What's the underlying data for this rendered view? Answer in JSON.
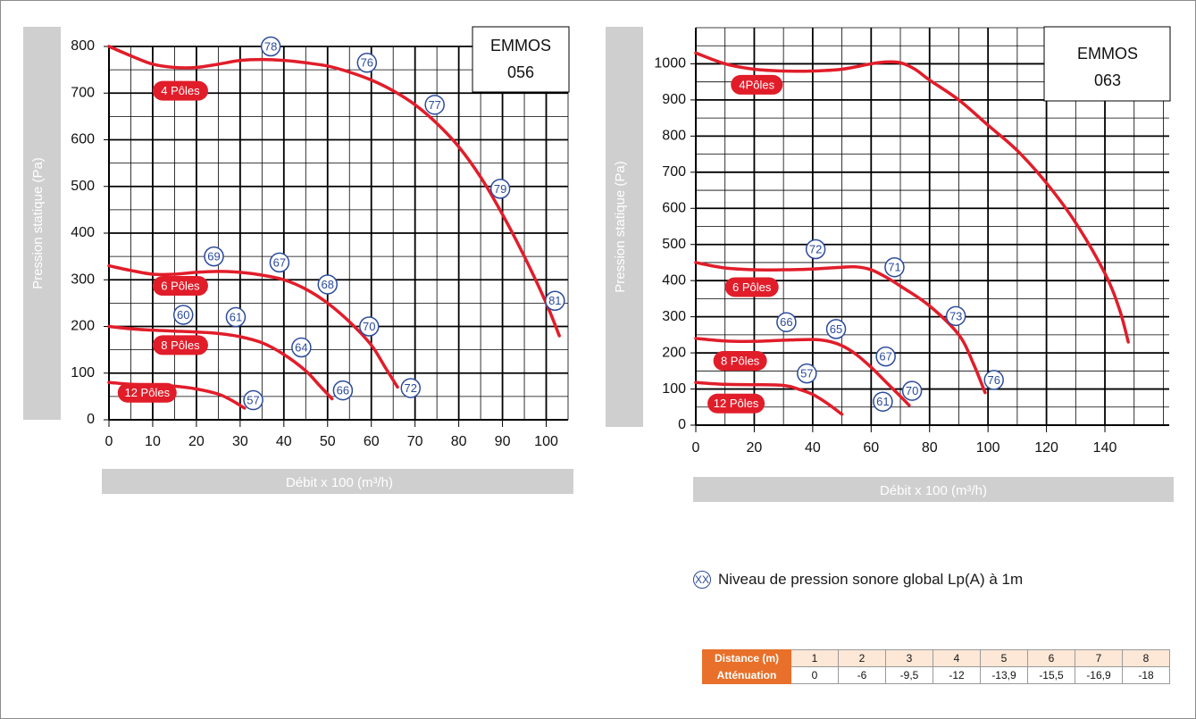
{
  "chart_data": [
    {
      "type": "line",
      "model_label_line1": "EMMOS",
      "model_label_line2": "056",
      "xlabel": "Débit x 100 (m³/h)",
      "ylabel": "Pression statique  (Pa)",
      "xlim": [
        0,
        105
      ],
      "ylim": [
        0,
        800
      ],
      "x_ticks": [
        0,
        10,
        20,
        30,
        40,
        50,
        60,
        70,
        80,
        90,
        100
      ],
      "y_ticks": [
        0,
        100,
        200,
        300,
        400,
        500,
        600,
        700,
        800
      ],
      "grid": true,
      "series": [
        {
          "name": "4 Pôles",
          "x": [
            0,
            5,
            10,
            15,
            20,
            25,
            30,
            35,
            40,
            45,
            50,
            55,
            60,
            65,
            70,
            75,
            80,
            85,
            90,
            95,
            100,
            103
          ],
          "y": [
            800,
            780,
            762,
            755,
            755,
            762,
            770,
            772,
            770,
            765,
            758,
            745,
            728,
            705,
            675,
            635,
            585,
            520,
            440,
            350,
            250,
            180
          ]
        },
        {
          "name": "6 Pôles",
          "x": [
            0,
            5,
            10,
            15,
            20,
            25,
            30,
            35,
            40,
            45,
            50,
            55,
            60,
            63,
            66
          ],
          "y": [
            330,
            320,
            312,
            312,
            316,
            318,
            316,
            310,
            300,
            280,
            250,
            210,
            160,
            115,
            70
          ]
        },
        {
          "name": "8 Pôles",
          "x": [
            0,
            5,
            10,
            15,
            20,
            25,
            30,
            35,
            40,
            45,
            48,
            51
          ],
          "y": [
            200,
            195,
            192,
            190,
            188,
            185,
            178,
            165,
            140,
            105,
            75,
            45
          ]
        },
        {
          "name": "12 Pôles",
          "x": [
            0,
            5,
            10,
            15,
            20,
            25,
            28,
            31
          ],
          "y": [
            80,
            76,
            74,
            72,
            66,
            55,
            42,
            25
          ]
        }
      ],
      "noise_markers": [
        {
          "x": 37,
          "y": 800,
          "label": "78"
        },
        {
          "x": 59,
          "y": 765,
          "label": "76"
        },
        {
          "x": 74.5,
          "y": 675,
          "label": "77"
        },
        {
          "x": 89.5,
          "y": 495,
          "label": "79"
        },
        {
          "x": 102,
          "y": 255,
          "label": "81"
        },
        {
          "x": 24,
          "y": 350,
          "label": "69"
        },
        {
          "x": 39,
          "y": 337,
          "label": "67"
        },
        {
          "x": 50,
          "y": 290,
          "label": "68"
        },
        {
          "x": 17,
          "y": 225,
          "label": "60"
        },
        {
          "x": 29,
          "y": 220,
          "label": "61"
        },
        {
          "x": 59.5,
          "y": 200,
          "label": "70"
        },
        {
          "x": 44,
          "y": 155,
          "label": "64"
        },
        {
          "x": 53.5,
          "y": 63,
          "label": "66"
        },
        {
          "x": 69,
          "y": 68,
          "label": "72"
        },
        {
          "x": 33,
          "y": 42,
          "label": "57"
        }
      ]
    },
    {
      "type": "line",
      "model_label_line1": "EMMOS",
      "model_label_line2": "063",
      "xlabel": "Débit x 100 (m³/h)",
      "ylabel": "Pression statique  (Pa)",
      "xlim": [
        0,
        162
      ],
      "ylim": [
        0,
        1100
      ],
      "x_ticks": [
        0,
        20,
        40,
        60,
        80,
        100,
        120,
        140
      ],
      "y_ticks": [
        0,
        100,
        200,
        300,
        400,
        500,
        600,
        700,
        800,
        900,
        1000
      ],
      "grid": true,
      "series": [
        {
          "name": "4Pôles",
          "x": [
            0,
            10,
            20,
            30,
            40,
            50,
            60,
            65,
            70,
            75,
            80,
            90,
            100,
            110,
            120,
            130,
            140,
            145,
            148
          ],
          "y": [
            1030,
            1000,
            985,
            980,
            980,
            985,
            1000,
            1005,
            1003,
            985,
            955,
            900,
            830,
            760,
            670,
            560,
            420,
            320,
            230
          ]
        },
        {
          "name": "6 Pôles",
          "x": [
            0,
            10,
            20,
            30,
            40,
            50,
            55,
            60,
            65,
            70,
            80,
            90,
            95,
            99
          ],
          "y": [
            450,
            435,
            430,
            430,
            432,
            437,
            438,
            430,
            410,
            385,
            330,
            250,
            170,
            90
          ]
        },
        {
          "name": "8 Pôles",
          "x": [
            0,
            10,
            20,
            30,
            40,
            45,
            50,
            55,
            60,
            65,
            70,
            73
          ],
          "y": [
            240,
            233,
            232,
            235,
            237,
            233,
            220,
            195,
            160,
            120,
            80,
            55
          ]
        },
        {
          "name": "12 Pôles",
          "x": [
            0,
            10,
            20,
            30,
            35,
            40,
            45,
            50
          ],
          "y": [
            118,
            113,
            112,
            110,
            100,
            85,
            60,
            30
          ]
        }
      ],
      "noise_markers": [
        {
          "x": 41,
          "y": 487,
          "label": "72"
        },
        {
          "x": 68,
          "y": 437,
          "label": "71"
        },
        {
          "x": 89,
          "y": 302,
          "label": "73"
        },
        {
          "x": 102,
          "y": 125,
          "label": "76"
        },
        {
          "x": 31,
          "y": 285,
          "label": "66"
        },
        {
          "x": 48,
          "y": 266,
          "label": "65"
        },
        {
          "x": 65,
          "y": 190,
          "label": "67"
        },
        {
          "x": 74,
          "y": 95,
          "label": "70"
        },
        {
          "x": 38,
          "y": 143,
          "label": "57"
        },
        {
          "x": 64,
          "y": 65,
          "label": "61"
        }
      ]
    }
  ],
  "legend": {
    "symbol": "XX",
    "text": "Niveau de pression sonore global  Lp(A) à 1m"
  },
  "table": {
    "row1_header": "Distance (m)",
    "row1_values": [
      "1",
      "2",
      "3",
      "4",
      "5",
      "6",
      "7",
      "8"
    ],
    "row2_header": "Atténuation",
    "row2_values": [
      "0",
      "-6",
      "-9,5",
      "-12",
      "-13,9",
      "-15,5",
      "-16,9",
      "-18"
    ]
  },
  "colors": {
    "curve": "#e11d2a",
    "label_fill": "#e11d2a",
    "marker": "#2b4a9b",
    "axis_bar": "#cfcfcf",
    "table_header": "#e8702a",
    "table_light": "#fde7d6"
  }
}
